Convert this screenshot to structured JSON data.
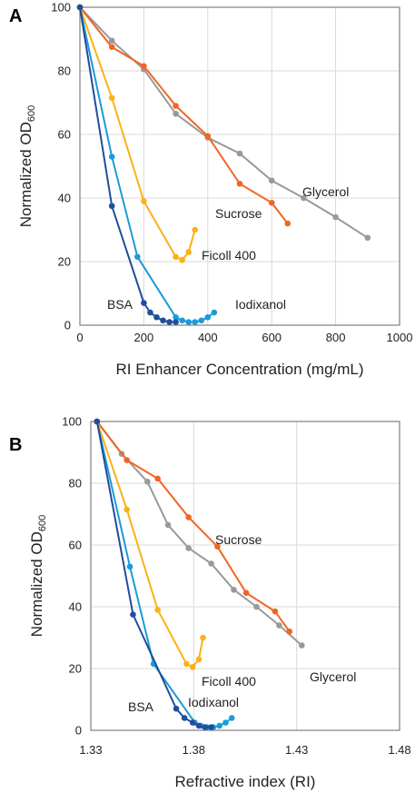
{
  "colors": {
    "Glycerol": "#999999",
    "Sucrose": "#f26522",
    "Ficoll 400": "#fbb117",
    "Iodixanol": "#1b9bd7",
    "BSA": "#1f4e9c"
  },
  "chart_data": [
    {
      "panel": "A",
      "type": "line",
      "xlabel": "RI Enhancer Concentration (mg/mL)",
      "ylabel": "Normalized OD",
      "ylabel_sub": "600",
      "xlim": [
        0,
        1000
      ],
      "ylim": [
        0,
        100
      ],
      "xticks": [
        "0",
        "200",
        "400",
        "600",
        "800",
        "1000"
      ],
      "yticks": [
        "0",
        "20",
        "40",
        "60",
        "80",
        "100"
      ],
      "grid": true,
      "series": [
        {
          "name": "Glycerol",
          "x": [
            0,
            100,
            200,
            300,
            400,
            500,
            600,
            700,
            800,
            900
          ],
          "y": [
            100,
            89.5,
            80.5,
            66.5,
            59,
            54,
            45.5,
            40,
            34,
            27.5
          ]
        },
        {
          "name": "Sucrose",
          "x": [
            0,
            100,
            200,
            300,
            400,
            500,
            600,
            650
          ],
          "y": [
            100,
            87.5,
            81.5,
            69,
            59.5,
            44.5,
            38.5,
            32
          ]
        },
        {
          "name": "Ficoll 400",
          "x": [
            0,
            100,
            200,
            300,
            320,
            340,
            360
          ],
          "y": [
            100,
            71.5,
            39,
            21.5,
            20.5,
            23,
            30
          ]
        },
        {
          "name": "Iodixanol",
          "x": [
            0,
            100,
            180,
            300,
            320,
            340,
            360,
            380,
            400,
            420
          ],
          "y": [
            100,
            53,
            21.5,
            2.5,
            1.5,
            1,
            1,
            1.5,
            2.5,
            4
          ]
        },
        {
          "name": "BSA",
          "x": [
            0,
            100,
            200,
            220,
            240,
            260,
            280,
            300
          ],
          "y": [
            100,
            37.5,
            7,
            4,
            2.5,
            1.5,
            1,
            1
          ]
        }
      ]
    },
    {
      "panel": "B",
      "type": "line",
      "xlabel": "Refractive index (RI)",
      "ylabel": "Normalized OD",
      "ylabel_sub": "600",
      "xlim": [
        1.33,
        1.48
      ],
      "ylim": [
        0,
        100
      ],
      "xticks": [
        "1.33",
        "1.38",
        "1.43",
        "1.48"
      ],
      "yticks": [
        "0",
        "20",
        "40",
        "60",
        "80",
        "100"
      ],
      "grid": true,
      "series": [
        {
          "name": "Glycerol",
          "x": [
            1.333,
            1.345,
            1.3575,
            1.3675,
            1.3775,
            1.3885,
            1.3995,
            1.4105,
            1.4215,
            1.4325
          ],
          "y": [
            100,
            89.5,
            80.5,
            66.5,
            59,
            54,
            45.5,
            40,
            34,
            27.5
          ]
        },
        {
          "name": "Sucrose",
          "x": [
            1.333,
            1.3475,
            1.3625,
            1.3775,
            1.3915,
            1.4055,
            1.4195,
            1.4265
          ],
          "y": [
            100,
            87.5,
            81.5,
            69,
            59.5,
            44.5,
            38.5,
            32
          ]
        },
        {
          "name": "Ficoll 400",
          "x": [
            1.333,
            1.3475,
            1.3625,
            1.3765,
            1.3795,
            1.3825,
            1.3845
          ],
          "y": [
            100,
            71.5,
            39,
            21.5,
            20.5,
            23,
            30
          ]
        },
        {
          "name": "Iodixanol",
          "x": [
            1.333,
            1.349,
            1.3605,
            1.3805,
            1.3835,
            1.3865,
            1.3895,
            1.3925,
            1.3955,
            1.3985
          ],
          "y": [
            100,
            53,
            21.5,
            2.5,
            1.5,
            1,
            1,
            1.5,
            2.5,
            4
          ]
        },
        {
          "name": "BSA",
          "x": [
            1.333,
            1.3505,
            1.3715,
            1.3755,
            1.3795,
            1.3825,
            1.3855,
            1.3885
          ],
          "y": [
            100,
            37.5,
            7,
            4,
            2.5,
            1.5,
            1,
            1
          ]
        }
      ]
    }
  ]
}
